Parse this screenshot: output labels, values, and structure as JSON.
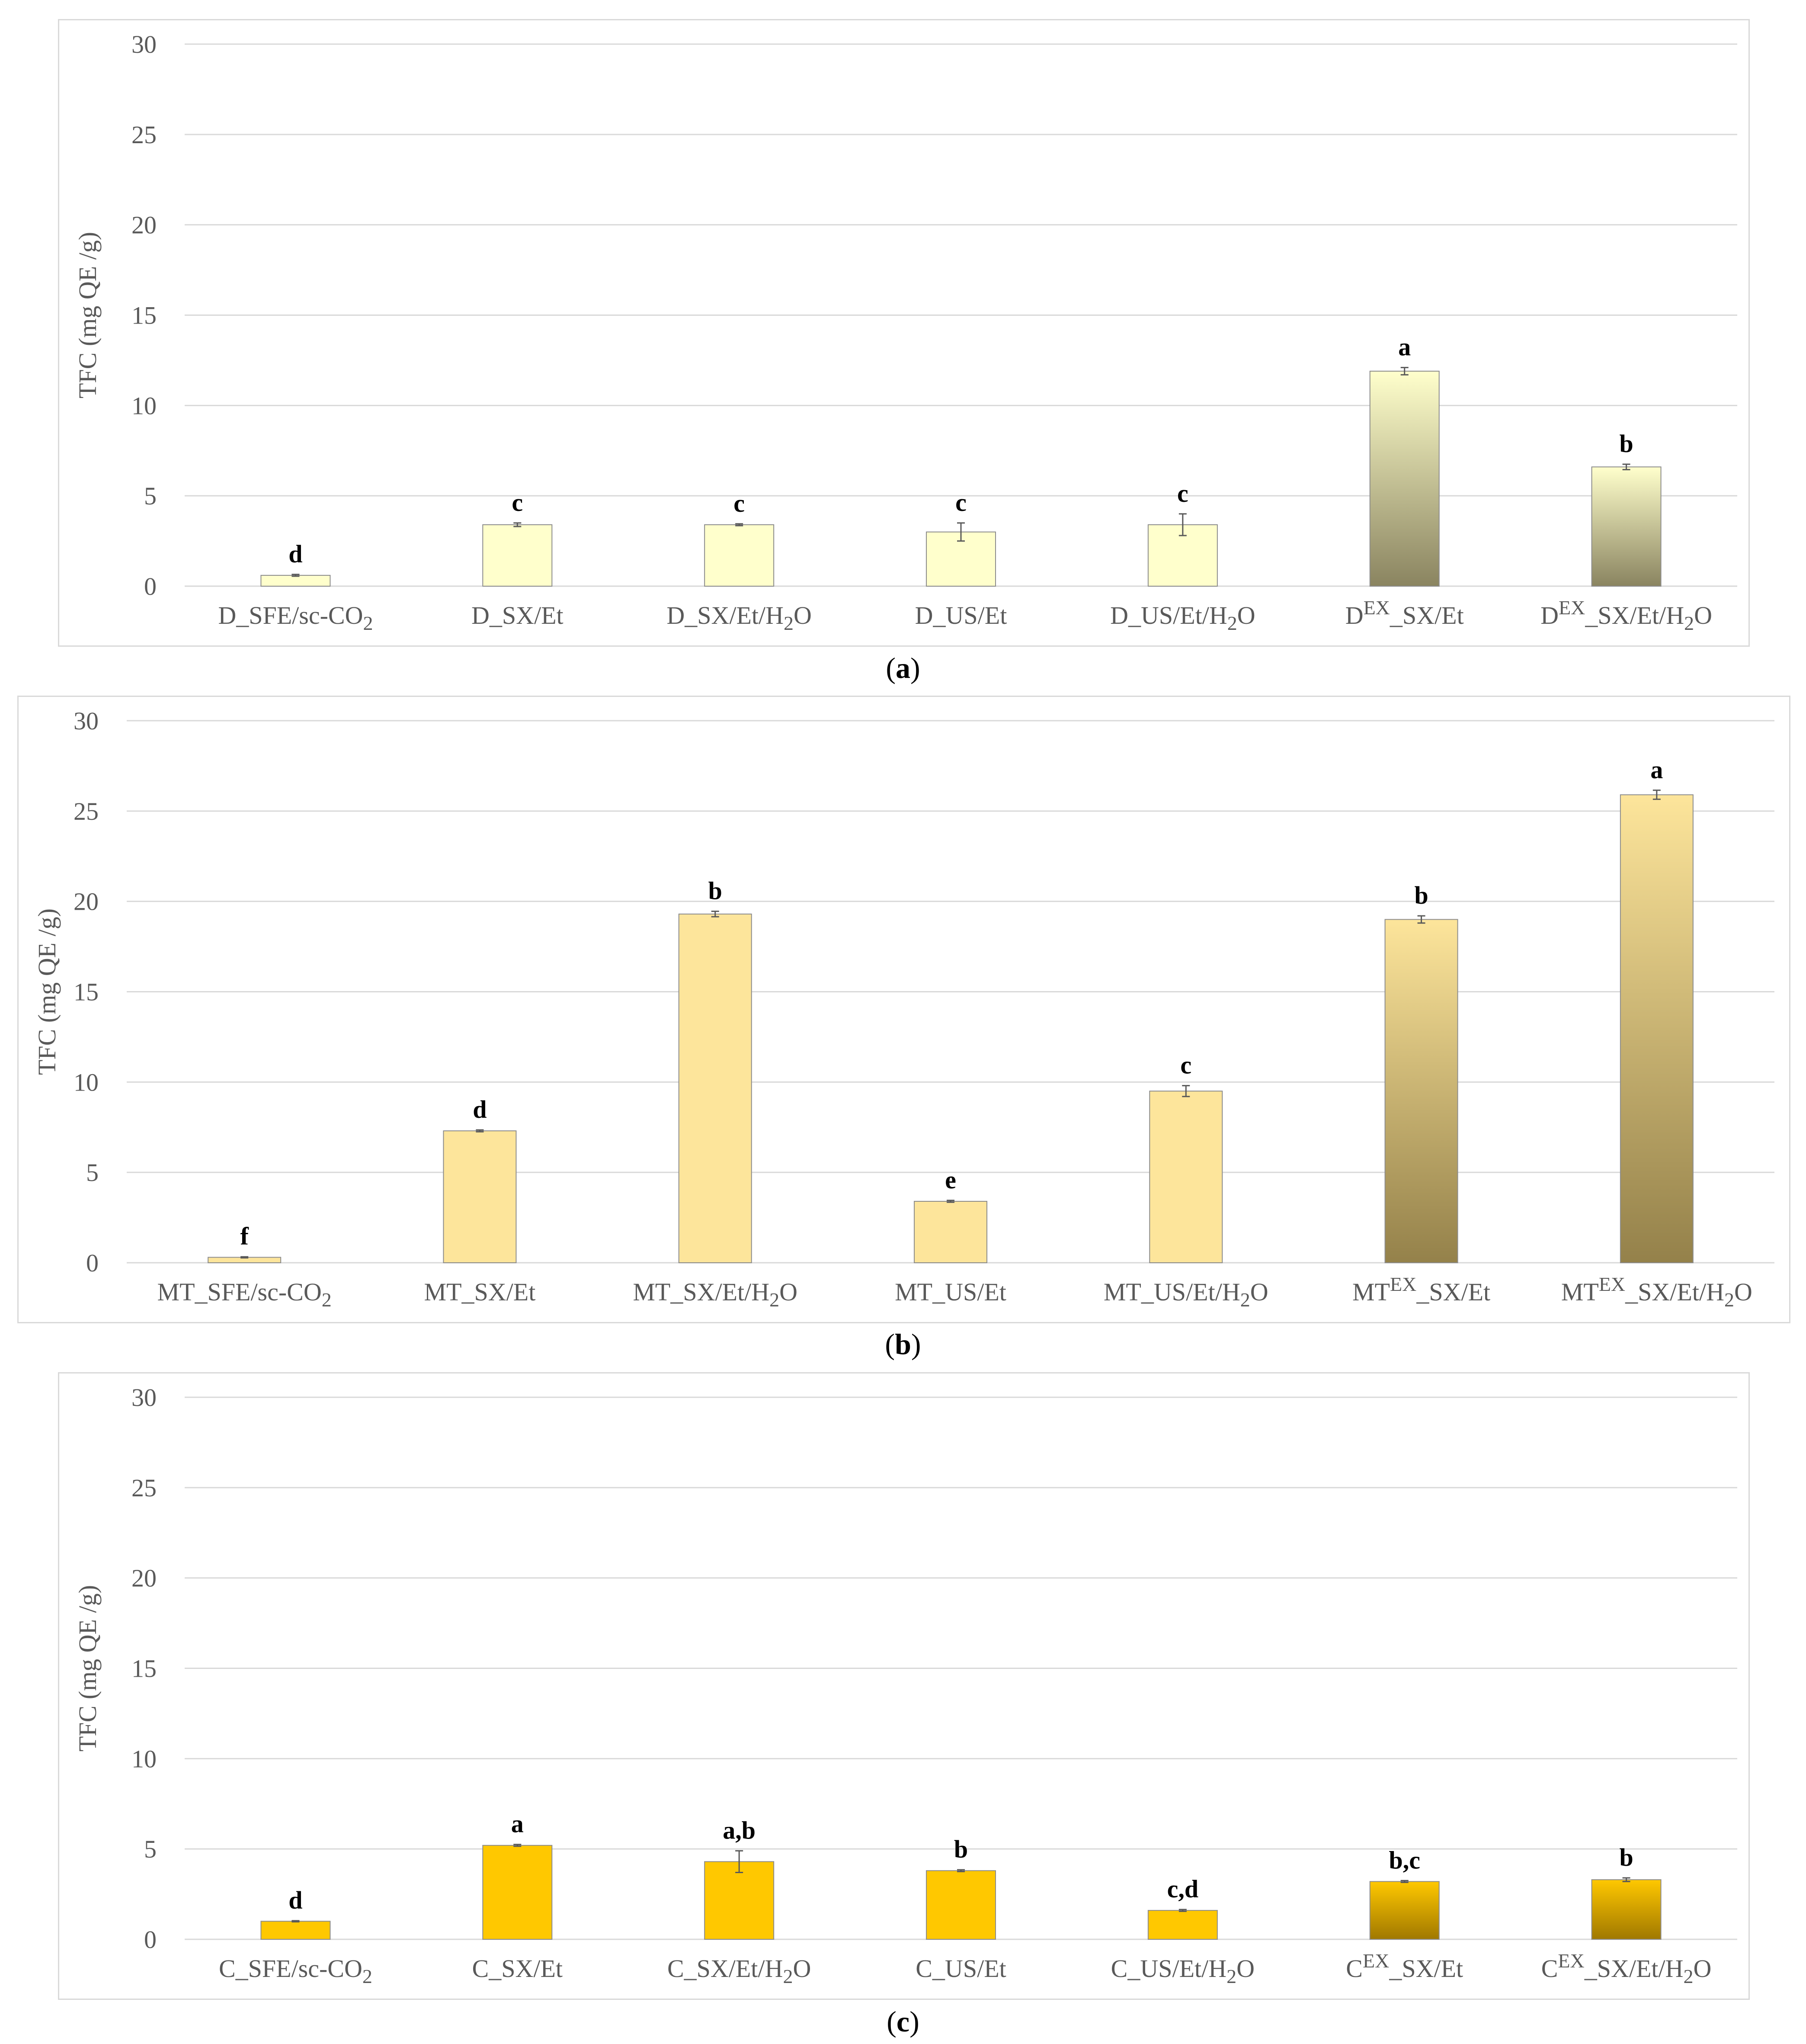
{
  "chart_data": [
    {
      "type": "bar",
      "panel": "a",
      "ylabel": "TFC (mg QE /g)",
      "ylim": [
        0,
        30
      ],
      "yticks": [
        "0",
        "5",
        "10",
        "15",
        "20",
        "25",
        "30"
      ],
      "grid": true,
      "categories": [
        {
          "pre": "D_SFE/sc-CO",
          "sub": "2",
          "post": ""
        },
        {
          "pre": "D_SX/Et",
          "sub": "",
          "post": ""
        },
        {
          "pre": "D_SX/Et/H",
          "sub": "2",
          "post": "O"
        },
        {
          "pre": "D_US/Et",
          "sub": "",
          "post": ""
        },
        {
          "pre": "D_US/Et/H",
          "sub": "2",
          "post": "O"
        },
        {
          "pre": "D",
          "sup": "EX",
          "mid": "_SX/Et",
          "sub": "",
          "post": ""
        },
        {
          "pre": "D",
          "sup": "EX",
          "mid": "_SX/Et/H",
          "sub": "2",
          "post": "O"
        }
      ],
      "values": [
        0.6,
        3.4,
        3.4,
        3.0,
        3.4,
        11.9,
        6.6
      ],
      "errors": [
        0.05,
        0.1,
        0.05,
        0.5,
        0.6,
        0.2,
        0.15
      ],
      "letters": [
        "d",
        "c",
        "c",
        "c",
        "c",
        "a",
        "b"
      ],
      "fill_plain": "#ffffcc",
      "fill_gradient": [
        "#ffffcc",
        "#8a8460"
      ],
      "caption": "a"
    },
    {
      "type": "bar",
      "panel": "b",
      "ylabel": "TFC (mg QE /g)",
      "ylim": [
        0,
        30
      ],
      "yticks": [
        "0",
        "5",
        "10",
        "15",
        "20",
        "25",
        "30"
      ],
      "grid": true,
      "categories": [
        {
          "pre": "MT_SFE/sc-CO",
          "sub": "2",
          "post": ""
        },
        {
          "pre": "MT_SX/Et",
          "sub": "",
          "post": ""
        },
        {
          "pre": "MT_SX/Et/H",
          "sub": "2",
          "post": "O"
        },
        {
          "pre": "MT_US/Et",
          "sub": "",
          "post": ""
        },
        {
          "pre": "MT_US/Et/H",
          "sub": "2",
          "post": "O"
        },
        {
          "pre": "MT",
          "sup": "EX",
          "mid": "_SX/Et",
          "sub": "",
          "post": ""
        },
        {
          "pre": "MT",
          "sup": "EX",
          "mid": "_SX/Et/H",
          "sub": "2",
          "post": "O"
        }
      ],
      "values": [
        0.3,
        7.3,
        19.3,
        3.4,
        9.5,
        19.0,
        25.9
      ],
      "errors": [
        0.03,
        0.05,
        0.15,
        0.05,
        0.3,
        0.2,
        0.25
      ],
      "letters": [
        "f",
        "d",
        "b",
        "e",
        "c",
        "b",
        "a"
      ],
      "fill_plain": "#fde59b",
      "fill_gradient": [
        "#fde59b",
        "#94814a"
      ],
      "caption": "b"
    },
    {
      "type": "bar",
      "panel": "c",
      "ylabel": "TFC (mg QE /g)",
      "ylim": [
        0,
        30
      ],
      "yticks": [
        "0",
        "5",
        "10",
        "15",
        "20",
        "25",
        "30"
      ],
      "grid": true,
      "categories": [
        {
          "pre": "C_SFE/sc-CO",
          "sub": "2",
          "post": ""
        },
        {
          "pre": "C_SX/Et",
          "sub": "",
          "post": ""
        },
        {
          "pre": "C_SX/Et/H",
          "sub": "2",
          "post": "O"
        },
        {
          "pre": "C_US/Et",
          "sub": "",
          "post": ""
        },
        {
          "pre": "C_US/Et/H",
          "sub": "2",
          "post": "O"
        },
        {
          "pre": "C",
          "sup": "EX",
          "mid": "_SX/Et",
          "sub": "",
          "post": ""
        },
        {
          "pre": "C",
          "sup": "EX",
          "mid": "_SX/Et/H",
          "sub": "2",
          "post": "O"
        }
      ],
      "values": [
        1.0,
        5.2,
        4.3,
        3.8,
        1.6,
        3.2,
        3.3
      ],
      "errors": [
        0.03,
        0.05,
        0.6,
        0.05,
        0.05,
        0.05,
        0.1
      ],
      "letters": [
        "d",
        "a",
        "a,b",
        "b",
        "c,d",
        "b,c",
        "b"
      ],
      "fill_plain": "#ffc800",
      "fill_gradient": [
        "#ffc800",
        "#a07800"
      ],
      "caption": "c"
    }
  ]
}
